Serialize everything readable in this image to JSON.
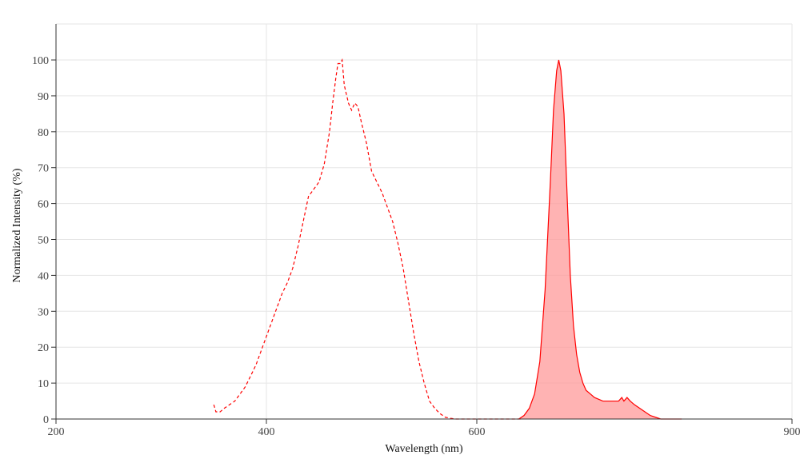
{
  "chart_data": {
    "type": "area",
    "xlabel": "Wavelength (nm)",
    "ylabel": "Normalized Intensity (%)",
    "xlim": [
      200,
      900
    ],
    "ylim": [
      0,
      110
    ],
    "x_ticks": [
      200,
      400,
      600,
      900
    ],
    "y_ticks": [
      0,
      10,
      20,
      30,
      40,
      50,
      60,
      70,
      80,
      90,
      100
    ],
    "grid": true,
    "legend": "none",
    "series": [
      {
        "style": "dashed",
        "color": "#ff0000",
        "fill": false,
        "points": [
          [
            350,
            4
          ],
          [
            352,
            2
          ],
          [
            356,
            2
          ],
          [
            360,
            3
          ],
          [
            365,
            4
          ],
          [
            370,
            5
          ],
          [
            375,
            7
          ],
          [
            380,
            9
          ],
          [
            385,
            12
          ],
          [
            390,
            15
          ],
          [
            395,
            19
          ],
          [
            400,
            23
          ],
          [
            405,
            27
          ],
          [
            410,
            31
          ],
          [
            415,
            35
          ],
          [
            420,
            38
          ],
          [
            425,
            42
          ],
          [
            430,
            48
          ],
          [
            435,
            55
          ],
          [
            440,
            62
          ],
          [
            445,
            64
          ],
          [
            450,
            66
          ],
          [
            455,
            71
          ],
          [
            460,
            80
          ],
          [
            463,
            88
          ],
          [
            466,
            95
          ],
          [
            468,
            99
          ],
          [
            470,
            99
          ],
          [
            472,
            100
          ],
          [
            474,
            93
          ],
          [
            478,
            88
          ],
          [
            481,
            86
          ],
          [
            484,
            88
          ],
          [
            487,
            87
          ],
          [
            490,
            83
          ],
          [
            495,
            77
          ],
          [
            500,
            69
          ],
          [
            505,
            66
          ],
          [
            510,
            63
          ],
          [
            515,
            59
          ],
          [
            520,
            55
          ],
          [
            525,
            49
          ],
          [
            530,
            42
          ],
          [
            535,
            33
          ],
          [
            540,
            24
          ],
          [
            545,
            16
          ],
          [
            550,
            10
          ],
          [
            555,
            5
          ],
          [
            560,
            3
          ],
          [
            565,
            1.5
          ],
          [
            570,
            0.5
          ],
          [
            575,
            0.2
          ],
          [
            580,
            0
          ],
          [
            600,
            0
          ],
          [
            625,
            0
          ],
          [
            642,
            0
          ]
        ]
      },
      {
        "style": "solid",
        "color": "#ff0000",
        "fill": true,
        "fill_color": "#ff9999",
        "points": [
          [
            640,
            0
          ],
          [
            645,
            1
          ],
          [
            650,
            3
          ],
          [
            655,
            7
          ],
          [
            660,
            16
          ],
          [
            665,
            36
          ],
          [
            670,
            66
          ],
          [
            673,
            86
          ],
          [
            676,
            97
          ],
          [
            678,
            100
          ],
          [
            680,
            97
          ],
          [
            683,
            85
          ],
          [
            686,
            62
          ],
          [
            689,
            40
          ],
          [
            692,
            26
          ],
          [
            695,
            18
          ],
          [
            698,
            13
          ],
          [
            701,
            10
          ],
          [
            704,
            8
          ],
          [
            708,
            7
          ],
          [
            712,
            6
          ],
          [
            716,
            5.5
          ],
          [
            720,
            5
          ],
          [
            725,
            5
          ],
          [
            730,
            5
          ],
          [
            735,
            5
          ],
          [
            738,
            6
          ],
          [
            740,
            5
          ],
          [
            743,
            6
          ],
          [
            746,
            5
          ],
          [
            750,
            4
          ],
          [
            755,
            3
          ],
          [
            760,
            2
          ],
          [
            765,
            1
          ],
          [
            770,
            0.5
          ],
          [
            775,
            0
          ],
          [
            795,
            0
          ]
        ]
      }
    ]
  }
}
